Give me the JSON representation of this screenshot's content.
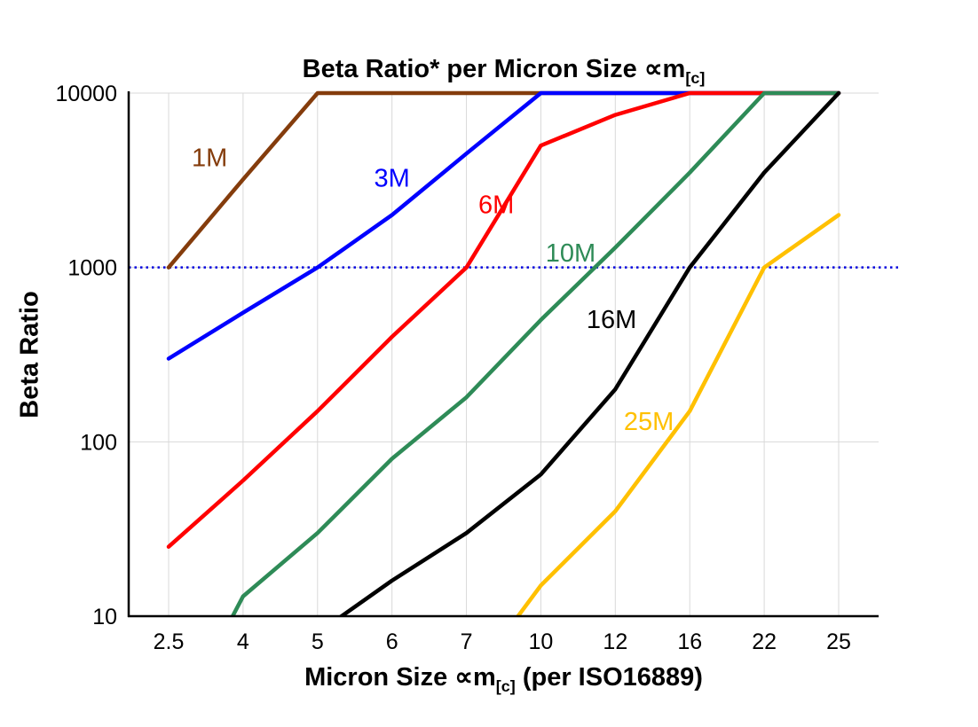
{
  "chart_data": {
    "type": "line",
    "title": "Beta Ratio* per Micron Size ∝m[c]",
    "title_parts": {
      "prefix": "Beta Ratio* per Micron Size ",
      "symbol": "∝m",
      "sub": "[c]"
    },
    "xlabel": "Micron Size ∝m[c] (per ISO16889)",
    "xlabel_parts": {
      "prefix": "Micron Size ",
      "symbol": "∝m",
      "sub": "[c]",
      "suffix": " (per ISO16889)"
    },
    "ylabel": "Beta Ratio",
    "y_scale": "log",
    "ylim": [
      10,
      10000
    ],
    "y_ticks": [
      "10",
      "100",
      "1000",
      "10000"
    ],
    "x_categories": [
      "2.5",
      "4",
      "5",
      "6",
      "7",
      "10",
      "12",
      "16",
      "22",
      "25"
    ],
    "grid": true,
    "grid_color": "#d9d9d9",
    "legend_position": "inline-labels",
    "reference_line": {
      "value": 1000,
      "color": "#0000dd",
      "style": "dotted"
    },
    "series": [
      {
        "name": "1M",
        "color": "#843c0c",
        "values": [
          1000,
          3200,
          10000,
          10000,
          10000,
          10000,
          10000,
          10000,
          10000,
          10000
        ],
        "label": {
          "x_index": 0.55,
          "value": 3800
        }
      },
      {
        "name": "3M",
        "color": "#0000ff",
        "values": [
          300,
          550,
          1000,
          2000,
          4500,
          10000,
          10000,
          10000,
          10000,
          10000
        ],
        "label": {
          "x_index": 3.0,
          "value": 2900
        }
      },
      {
        "name": "6M",
        "color": "#ff0000",
        "values": [
          25,
          60,
          150,
          400,
          1000,
          5000,
          7500,
          10000,
          10000,
          10000
        ],
        "label": {
          "x_index": 4.4,
          "value": 2050
        }
      },
      {
        "name": "10M",
        "color": "#2e8b57",
        "values": [
          2,
          13,
          30,
          80,
          180,
          500,
          1300,
          3500,
          10000,
          10000
        ],
        "label": {
          "x_index": 5.4,
          "value": 1080
        }
      },
      {
        "name": "16M",
        "color": "#000000",
        "values": [
          null,
          null,
          8,
          16,
          30,
          65,
          200,
          1000,
          3500,
          10000
        ],
        "label": {
          "x_index": 5.95,
          "value": 450
        }
      },
      {
        "name": "25M",
        "color": "#ffc000",
        "values": [
          null,
          null,
          null,
          null,
          4,
          15,
          40,
          150,
          1000,
          2000
        ],
        "label": {
          "x_index": 6.45,
          "value": 117
        }
      }
    ]
  }
}
